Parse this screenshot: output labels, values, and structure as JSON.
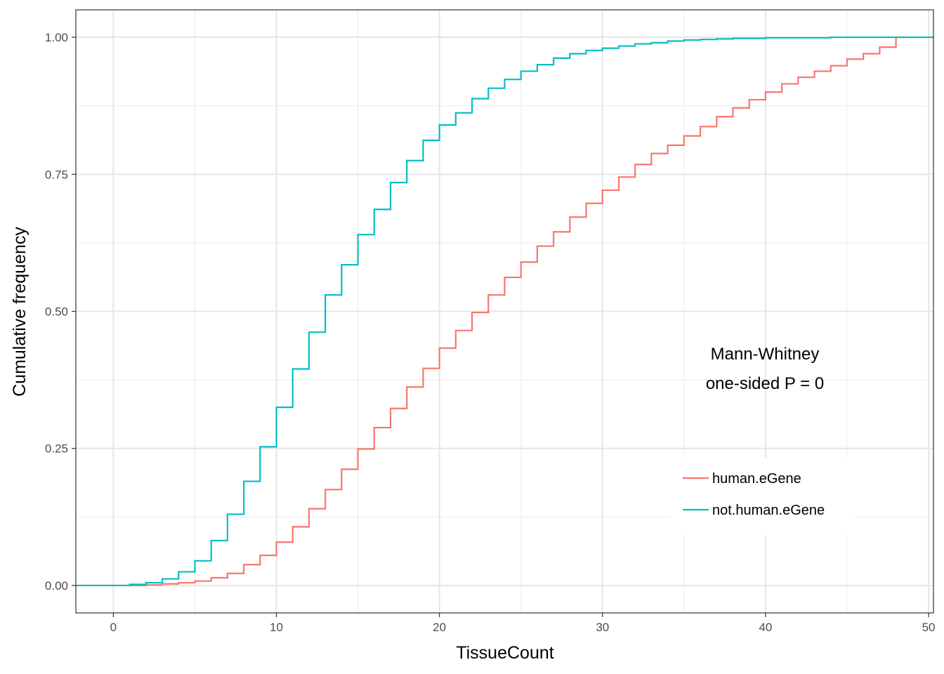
{
  "chart_data": {
    "type": "line",
    "step": true,
    "xlabel": "TissueCount",
    "ylabel": "Cumulative frequency",
    "xlim": [
      -2.3,
      50.3
    ],
    "ylim": [
      -0.05,
      1.05
    ],
    "x_ticks": [
      0,
      10,
      20,
      30,
      40,
      50
    ],
    "x_tick_labels": [
      "0",
      "10",
      "20",
      "30",
      "40",
      "50"
    ],
    "y_ticks": [
      0,
      0.25,
      0.5,
      0.75,
      1.0
    ],
    "y_tick_labels": [
      "0.00",
      "0.25",
      "0.50",
      "0.75",
      "1.00"
    ],
    "grid": true,
    "legend_position": "bottom-right",
    "annotation": [
      "Mann-Whitney",
      "one-sided P = 0"
    ],
    "series": [
      {
        "name": "human.eGene",
        "color": "#F8766D",
        "x": [
          -2.3,
          0,
          1,
          2,
          3,
          4,
          5,
          6,
          7,
          8,
          9,
          10,
          11,
          12,
          13,
          14,
          15,
          16,
          17,
          18,
          19,
          20,
          21,
          22,
          23,
          24,
          25,
          26,
          27,
          28,
          29,
          30,
          31,
          32,
          33,
          34,
          35,
          36,
          37,
          38,
          39,
          40,
          41,
          42,
          43,
          44,
          45,
          46,
          47,
          48,
          50.3
        ],
        "y": [
          0,
          0,
          0,
          0.001,
          0.003,
          0.005,
          0.008,
          0.014,
          0.022,
          0.038,
          0.055,
          0.079,
          0.107,
          0.14,
          0.175,
          0.212,
          0.249,
          0.288,
          0.323,
          0.362,
          0.396,
          0.433,
          0.465,
          0.498,
          0.53,
          0.562,
          0.59,
          0.619,
          0.645,
          0.672,
          0.697,
          0.721,
          0.745,
          0.768,
          0.788,
          0.803,
          0.82,
          0.837,
          0.855,
          0.871,
          0.886,
          0.9,
          0.915,
          0.927,
          0.938,
          0.948,
          0.96,
          0.97,
          0.982,
          1.0,
          1.0
        ]
      },
      {
        "name": "not.human.eGene",
        "color": "#00BFC4",
        "x": [
          -2.3,
          0,
          1,
          2,
          3,
          4,
          5,
          6,
          7,
          8,
          9,
          10,
          11,
          12,
          13,
          14,
          15,
          16,
          17,
          18,
          19,
          20,
          21,
          22,
          23,
          24,
          25,
          26,
          27,
          28,
          29,
          30,
          31,
          32,
          33,
          34,
          35,
          36,
          37,
          38,
          39,
          40,
          41,
          42,
          43,
          44,
          45,
          46,
          47,
          48,
          50.3
        ],
        "y": [
          0,
          0,
          0.002,
          0.005,
          0.012,
          0.025,
          0.045,
          0.082,
          0.13,
          0.19,
          0.253,
          0.325,
          0.395,
          0.462,
          0.53,
          0.585,
          0.64,
          0.686,
          0.735,
          0.775,
          0.812,
          0.84,
          0.862,
          0.888,
          0.907,
          0.923,
          0.938,
          0.95,
          0.962,
          0.97,
          0.976,
          0.98,
          0.984,
          0.988,
          0.99,
          0.993,
          0.995,
          0.996,
          0.997,
          0.998,
          0.998,
          0.999,
          0.999,
          0.999,
          0.999,
          1.0,
          1.0,
          1.0,
          1.0,
          1.0,
          1.0
        ]
      }
    ]
  }
}
